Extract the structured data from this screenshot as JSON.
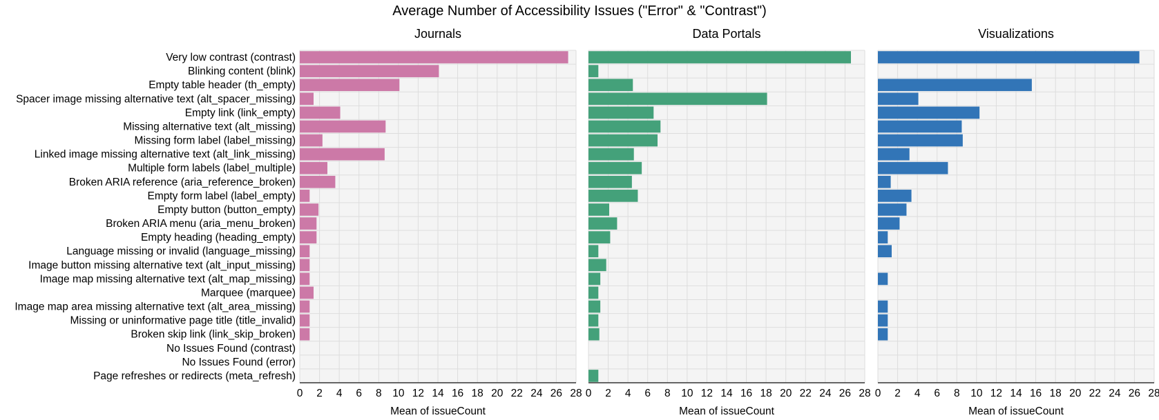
{
  "chart_data": {
    "type": "bar",
    "orientation": "horizontal",
    "title": "Average Number of Accessibility Issues (\"Error\" & \"Contrast\")",
    "xlabel": "Mean of issueCount",
    "xlim": [
      0,
      28
    ],
    "xticks": [
      "0",
      "2",
      "4",
      "6",
      "8",
      "10",
      "12",
      "14",
      "16",
      "18",
      "20",
      "22",
      "24",
      "26",
      "28"
    ],
    "grid": true,
    "categories": [
      "Very low contrast (contrast)",
      "Blinking content (blink)",
      "Empty table header (th_empty)",
      "Spacer image missing alternative text (alt_spacer_missing)",
      "Empty link (link_empty)",
      "Missing alternative text (alt_missing)",
      "Missing form label (label_missing)",
      "Linked image missing alternative text (alt_link_missing)",
      "Multiple form labels (label_multiple)",
      "Broken ARIA reference (aria_reference_broken)",
      "Empty form label (label_empty)",
      "Empty button (button_empty)",
      "Broken ARIA menu (aria_menu_broken)",
      "Empty heading (heading_empty)",
      "Language missing or invalid (language_missing)",
      "Image button missing alternative text (alt_input_missing)",
      "Image map missing alternative text (alt_map_missing)",
      "Marquee (marquee)",
      "Image map area missing alternative text (alt_area_missing)",
      "Missing or uninformative page title (title_invalid)",
      "Broken skip link (link_skip_broken)",
      "No Issues Found (contrast)",
      "No Issues Found (error)",
      "Page refreshes or redirects (meta_refresh)"
    ],
    "series": [
      {
        "name": "Journals",
        "color": "#cc79a7",
        "values": [
          27.2,
          14.1,
          10.1,
          1.4,
          4.1,
          8.7,
          2.3,
          8.6,
          2.8,
          3.6,
          1.0,
          1.9,
          1.7,
          1.7,
          1.0,
          1.0,
          1.0,
          1.4,
          1.0,
          1.0,
          1.0,
          null,
          null,
          null
        ]
      },
      {
        "name": "Data Portals",
        "color": "#44a17a",
        "values": [
          26.6,
          1.0,
          4.5,
          18.1,
          6.6,
          7.3,
          7.0,
          4.6,
          5.4,
          4.4,
          5.0,
          2.1,
          2.9,
          2.2,
          1.0,
          1.8,
          1.2,
          1.0,
          1.2,
          1.0,
          1.1,
          null,
          null,
          1.0
        ]
      },
      {
        "name": "Visualizations",
        "color": "#3275b7",
        "values": [
          26.5,
          null,
          15.6,
          4.1,
          10.3,
          8.5,
          8.6,
          3.2,
          7.1,
          1.3,
          3.4,
          2.9,
          2.2,
          1.0,
          1.4,
          null,
          1.0,
          null,
          1.0,
          1.0,
          1.0,
          null,
          null,
          null
        ]
      }
    ]
  }
}
